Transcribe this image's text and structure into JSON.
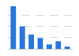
{
  "chart_data": {
    "type": "bar",
    "categories": [
      null,
      null,
      null,
      null,
      null,
      null,
      null
    ],
    "values": [
      95,
      50,
      32,
      24,
      10,
      17,
      5
    ],
    "color": "#2876dd",
    "ylim": [
      0,
      100
    ],
    "yticks": [
      0,
      25,
      50,
      75,
      100
    ],
    "grid": true,
    "tick_labels": false
  }
}
